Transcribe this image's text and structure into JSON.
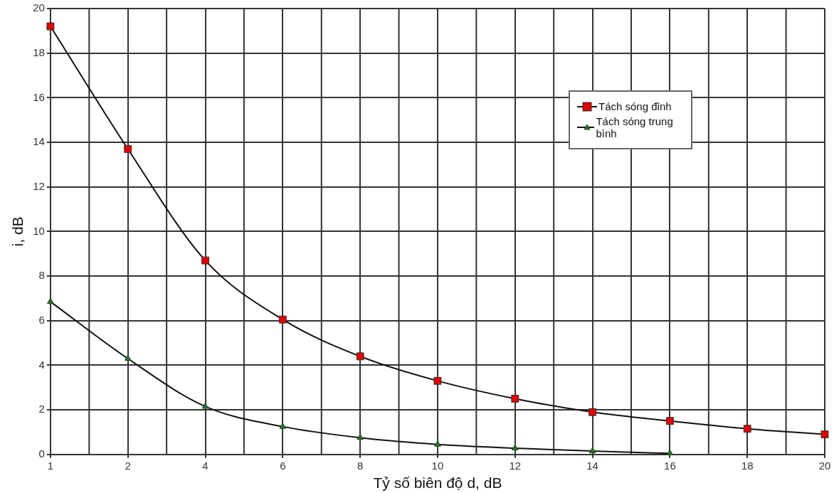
{
  "chart_data": {
    "type": "line",
    "xlabel": "Tỷ số biên độ d, dB",
    "ylabel": "i, dB",
    "categories": [
      "1",
      "2",
      "4",
      "6",
      "8",
      "10",
      "12",
      "14",
      "16",
      "18",
      "20"
    ],
    "series": [
      {
        "name": "Tách sóng đỉnh",
        "color": "#e00000",
        "marker": "square",
        "values": [
          19.2,
          13.7,
          8.7,
          6.05,
          4.4,
          3.3,
          2.5,
          1.9,
          1.5,
          1.15,
          0.9
        ]
      },
      {
        "name": "Tách sóng trung bình",
        "color": "#1e7d1e",
        "marker": "triangle",
        "values": [
          6.85,
          4.3,
          2.15,
          1.25,
          0.75,
          0.45,
          0.28,
          0.15,
          0.05,
          null,
          null
        ]
      }
    ],
    "ylim": [
      0,
      20
    ],
    "yticks": [
      0,
      2,
      4,
      6,
      8,
      10,
      12,
      14,
      16,
      18,
      20
    ],
    "grid": true,
    "legend": "top right"
  }
}
